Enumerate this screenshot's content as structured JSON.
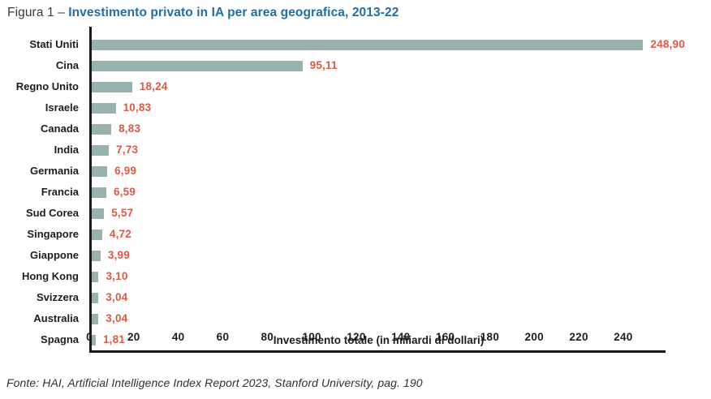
{
  "title": {
    "prefix": "Figura 1 – ",
    "main": "Investimento privato in IA per area geografica, 2013-22"
  },
  "colors": {
    "title_accent": "#1e6fa7",
    "bar_color": "#97b3b0",
    "value_color": "#d85b44",
    "axis_color": "#1a1a1a",
    "text_color": "#1d1d1b"
  },
  "chart_data": {
    "type": "bar",
    "orientation": "horizontal",
    "title": "Investimento privato in IA per area geografica, 2013-22",
    "categories": [
      "Stati Uniti",
      "Cina",
      "Regno Unito",
      "Israele",
      "Canada",
      "India",
      "Germania",
      "Francia",
      "Sud Corea",
      "Singapore",
      "Giappone",
      "Hong Kong",
      "Svizzera",
      "Australia",
      "Spagna"
    ],
    "values": [
      248.9,
      95.11,
      18.24,
      10.83,
      8.83,
      7.73,
      6.99,
      6.59,
      5.57,
      4.72,
      3.99,
      3.1,
      3.04,
      3.04,
      1.81
    ],
    "value_labels": [
      "248,90",
      "95,11",
      "18,24",
      "10,83",
      "8,83",
      "7,73",
      "6,99",
      "6,59",
      "5,57",
      "4,72",
      "3,99",
      "3,10",
      "3,04",
      "3,04",
      "1,81"
    ],
    "xlabel": "Investimento totale (in miliardi di dollari)",
    "x_ticks": [
      0,
      20,
      40,
      60,
      80,
      100,
      120,
      140,
      160,
      180,
      200,
      220,
      240
    ],
    "xlim": [
      0,
      259
    ],
    "grid": false,
    "legend": false,
    "bar_color": "#97b3b0",
    "value_color": "#d85b44"
  },
  "footer": {
    "source": "Fonte: HAI, Artificial Intelligence Index Report 2023, Stanford University, pag. 190"
  }
}
